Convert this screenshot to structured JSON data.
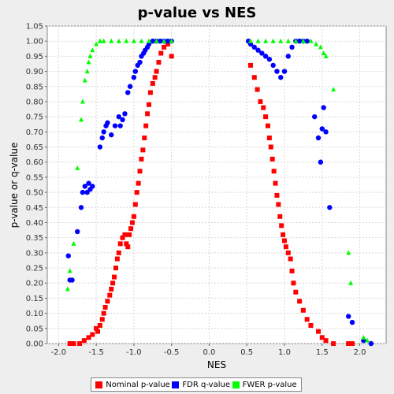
{
  "chart_data": {
    "type": "scatter",
    "title": "p-value vs NES",
    "xlabel": "NES",
    "ylabel": "p-value or q-value",
    "xlim": [
      -2.15,
      2.35
    ],
    "ylim": [
      0,
      1.05
    ],
    "x_ticks": [
      "-2.0",
      "-1.5",
      "-1.0",
      "-0.5",
      "0.0",
      "0.5",
      "1.0",
      "1.5",
      "2.0"
    ],
    "x_tick_values": [
      -2.0,
      -1.5,
      -1.0,
      -0.5,
      0.0,
      0.5,
      1.0,
      1.5,
      2.0
    ],
    "y_ticks": [
      "0.00",
      "0.05",
      "0.10",
      "0.15",
      "0.20",
      "0.25",
      "0.30",
      "0.35",
      "0.40",
      "0.45",
      "0.50",
      "0.55",
      "0.60",
      "0.65",
      "0.70",
      "0.75",
      "0.80",
      "0.85",
      "0.90",
      "0.95",
      "1.00",
      "1.05"
    ],
    "y_tick_values": [
      0,
      0.05,
      0.1,
      0.15,
      0.2,
      0.25,
      0.3,
      0.35,
      0.4,
      0.45,
      0.5,
      0.55,
      0.6,
      0.65,
      0.7,
      0.75,
      0.8,
      0.85,
      0.9,
      0.95,
      1.0,
      1.05
    ],
    "grid": true,
    "legend_position": "bottom",
    "series": [
      {
        "name": "Nominal p-value",
        "color": "#ff0000",
        "marker": "square",
        "points": [
          [
            -1.85,
            0.0
          ],
          [
            -1.8,
            0.0
          ],
          [
            -1.72,
            0.0
          ],
          [
            -1.66,
            0.01
          ],
          [
            -1.6,
            0.02
          ],
          [
            -1.55,
            0.03
          ],
          [
            -1.5,
            0.05
          ],
          [
            -1.48,
            0.04
          ],
          [
            -1.45,
            0.06
          ],
          [
            -1.42,
            0.08
          ],
          [
            -1.4,
            0.1
          ],
          [
            -1.38,
            0.12
          ],
          [
            -1.35,
            0.14
          ],
          [
            -1.32,
            0.16
          ],
          [
            -1.3,
            0.18
          ],
          [
            -1.28,
            0.2
          ],
          [
            -1.26,
            0.22
          ],
          [
            -1.24,
            0.25
          ],
          [
            -1.22,
            0.28
          ],
          [
            -1.2,
            0.3
          ],
          [
            -1.18,
            0.33
          ],
          [
            -1.15,
            0.35
          ],
          [
            -1.12,
            0.36
          ],
          [
            -1.1,
            0.33
          ],
          [
            -1.08,
            0.32
          ],
          [
            -1.06,
            0.36
          ],
          [
            -1.04,
            0.38
          ],
          [
            -1.02,
            0.4
          ],
          [
            -1.0,
            0.42
          ],
          [
            -0.98,
            0.46
          ],
          [
            -0.96,
            0.5
          ],
          [
            -0.94,
            0.53
          ],
          [
            -0.92,
            0.57
          ],
          [
            -0.9,
            0.61
          ],
          [
            -0.88,
            0.64
          ],
          [
            -0.86,
            0.68
          ],
          [
            -0.84,
            0.72
          ],
          [
            -0.82,
            0.76
          ],
          [
            -0.8,
            0.79
          ],
          [
            -0.78,
            0.83
          ],
          [
            -0.75,
            0.86
          ],
          [
            -0.72,
            0.88
          ],
          [
            -0.7,
            0.9
          ],
          [
            -0.67,
            0.93
          ],
          [
            -0.64,
            0.96
          ],
          [
            -0.6,
            0.98
          ],
          [
            -0.55,
            0.99
          ],
          [
            -0.5,
            0.95
          ],
          [
            0.55,
            0.92
          ],
          [
            0.6,
            0.88
          ],
          [
            0.64,
            0.84
          ],
          [
            0.68,
            0.8
          ],
          [
            0.72,
            0.78
          ],
          [
            0.75,
            0.75
          ],
          [
            0.78,
            0.72
          ],
          [
            0.8,
            0.68
          ],
          [
            0.82,
            0.65
          ],
          [
            0.84,
            0.61
          ],
          [
            0.86,
            0.57
          ],
          [
            0.88,
            0.53
          ],
          [
            0.9,
            0.49
          ],
          [
            0.92,
            0.46
          ],
          [
            0.94,
            0.42
          ],
          [
            0.96,
            0.39
          ],
          [
            0.98,
            0.36
          ],
          [
            1.0,
            0.34
          ],
          [
            1.02,
            0.32
          ],
          [
            1.05,
            0.3
          ],
          [
            1.08,
            0.28
          ],
          [
            1.1,
            0.24
          ],
          [
            1.12,
            0.2
          ],
          [
            1.15,
            0.17
          ],
          [
            1.2,
            0.14
          ],
          [
            1.25,
            0.11
          ],
          [
            1.3,
            0.08
          ],
          [
            1.35,
            0.06
          ],
          [
            1.45,
            0.04
          ],
          [
            1.5,
            0.02
          ],
          [
            1.55,
            0.01
          ],
          [
            1.65,
            0.0
          ],
          [
            1.85,
            0.0
          ],
          [
            1.9,
            0.0
          ]
        ]
      },
      {
        "name": "FDR q-value",
        "color": "#0000ff",
        "marker": "circle",
        "points": [
          [
            -1.87,
            0.29
          ],
          [
            -1.85,
            0.21
          ],
          [
            -1.82,
            0.21
          ],
          [
            -1.75,
            0.37
          ],
          [
            -1.7,
            0.45
          ],
          [
            -1.68,
            0.5
          ],
          [
            -1.65,
            0.52
          ],
          [
            -1.62,
            0.5
          ],
          [
            -1.6,
            0.53
          ],
          [
            -1.58,
            0.51
          ],
          [
            -1.55,
            0.52
          ],
          [
            -1.45,
            0.65
          ],
          [
            -1.42,
            0.68
          ],
          [
            -1.4,
            0.7
          ],
          [
            -1.37,
            0.72
          ],
          [
            -1.35,
            0.73
          ],
          [
            -1.3,
            0.69
          ],
          [
            -1.25,
            0.72
          ],
          [
            -1.2,
            0.75
          ],
          [
            -1.18,
            0.72
          ],
          [
            -1.15,
            0.74
          ],
          [
            -1.12,
            0.76
          ],
          [
            -1.08,
            0.83
          ],
          [
            -1.05,
            0.85
          ],
          [
            -1.0,
            0.88
          ],
          [
            -0.98,
            0.9
          ],
          [
            -0.95,
            0.92
          ],
          [
            -0.92,
            0.93
          ],
          [
            -0.9,
            0.95
          ],
          [
            -0.87,
            0.96
          ],
          [
            -0.85,
            0.97
          ],
          [
            -0.82,
            0.98
          ],
          [
            -0.8,
            0.99
          ],
          [
            -0.75,
            1.0
          ],
          [
            -0.7,
            1.0
          ],
          [
            -0.65,
            1.0
          ],
          [
            -0.6,
            1.0
          ],
          [
            -0.55,
            1.0
          ],
          [
            -0.5,
            1.0
          ],
          [
            0.52,
            1.0
          ],
          [
            0.55,
            0.99
          ],
          [
            0.6,
            0.98
          ],
          [
            0.65,
            0.97
          ],
          [
            0.7,
            0.96
          ],
          [
            0.75,
            0.95
          ],
          [
            0.8,
            0.94
          ],
          [
            0.85,
            0.92
          ],
          [
            0.9,
            0.9
          ],
          [
            0.95,
            0.88
          ],
          [
            1.0,
            0.9
          ],
          [
            1.05,
            0.95
          ],
          [
            1.1,
            0.98
          ],
          [
            1.15,
            1.0
          ],
          [
            1.2,
            1.0
          ],
          [
            1.25,
            1.0
          ],
          [
            1.3,
            1.0
          ],
          [
            1.4,
            0.75
          ],
          [
            1.45,
            0.68
          ],
          [
            1.48,
            0.6
          ],
          [
            1.5,
            0.71
          ],
          [
            1.52,
            0.78
          ],
          [
            1.55,
            0.7
          ],
          [
            1.6,
            0.45
          ],
          [
            1.85,
            0.09
          ],
          [
            1.9,
            0.07
          ],
          [
            2.05,
            0.01
          ],
          [
            2.15,
            0.0
          ]
        ]
      },
      {
        "name": "FWER p-value",
        "color": "#00ff00",
        "marker": "triangle",
        "points": [
          [
            -1.88,
            0.18
          ],
          [
            -1.85,
            0.24
          ],
          [
            -1.8,
            0.33
          ],
          [
            -1.75,
            0.58
          ],
          [
            -1.7,
            0.74
          ],
          [
            -1.68,
            0.8
          ],
          [
            -1.65,
            0.87
          ],
          [
            -1.62,
            0.9
          ],
          [
            -1.6,
            0.93
          ],
          [
            -1.58,
            0.95
          ],
          [
            -1.55,
            0.97
          ],
          [
            -1.5,
            0.99
          ],
          [
            -1.45,
            1.0
          ],
          [
            -1.4,
            1.0
          ],
          [
            -1.3,
            1.0
          ],
          [
            -1.2,
            1.0
          ],
          [
            -1.1,
            1.0
          ],
          [
            -1.0,
            1.0
          ],
          [
            -0.9,
            1.0
          ],
          [
            -0.8,
            1.0
          ],
          [
            -0.7,
            1.0
          ],
          [
            -0.6,
            1.0
          ],
          [
            -0.5,
            1.0
          ],
          [
            0.55,
            1.0
          ],
          [
            0.65,
            1.0
          ],
          [
            0.75,
            1.0
          ],
          [
            0.85,
            1.0
          ],
          [
            0.95,
            1.0
          ],
          [
            1.05,
            1.0
          ],
          [
            1.15,
            1.0
          ],
          [
            1.25,
            1.0
          ],
          [
            1.35,
            1.0
          ],
          [
            1.42,
            0.99
          ],
          [
            1.48,
            0.98
          ],
          [
            1.52,
            0.96
          ],
          [
            1.55,
            0.95
          ],
          [
            1.65,
            0.84
          ],
          [
            1.85,
            0.3
          ],
          [
            1.88,
            0.2
          ],
          [
            2.05,
            0.02
          ],
          [
            2.1,
            0.01
          ]
        ]
      }
    ]
  }
}
